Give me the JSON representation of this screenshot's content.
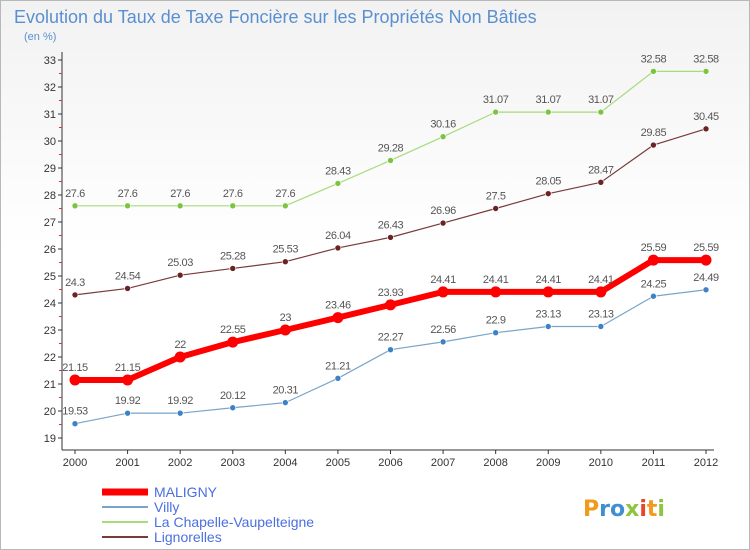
{
  "title": "Evolution du Taux de Taxe Foncière sur les Propriétés Non Bâties",
  "unit_label": "(en %)",
  "logo": "Proxiti",
  "chart_data": {
    "type": "line",
    "x": [
      "2000",
      "2001",
      "2002",
      "2003",
      "2004",
      "2005",
      "2006",
      "2007",
      "2008",
      "2009",
      "2010",
      "2011",
      "2012"
    ],
    "ylim": [
      19,
      33
    ],
    "yticks": [
      "19",
      "20",
      "21",
      "22",
      "23",
      "24",
      "25",
      "26",
      "27",
      "28",
      "29",
      "30",
      "31",
      "32",
      "33"
    ],
    "grid": false,
    "legend_position": "bottom-left",
    "series": [
      {
        "name": "MALIGNY",
        "color": "#ff0000",
        "marker_color": "#ff0000",
        "width": 6,
        "values": [
          21.15,
          21.15,
          22,
          22.55,
          23,
          23.46,
          23.93,
          24.41,
          24.41,
          24.41,
          24.41,
          25.59,
          25.59
        ],
        "labels": [
          "21.15",
          "21.15",
          "22",
          "22.55",
          "23",
          "23.46",
          "23.93",
          "24.41",
          "24.41",
          "24.41",
          "24.41",
          "25.59",
          "25.59"
        ]
      },
      {
        "name": "Villy",
        "color": "#7aa4c8",
        "marker_color": "#3d82c4",
        "width": 1.2,
        "values": [
          19.53,
          19.92,
          19.92,
          20.12,
          20.31,
          21.21,
          22.27,
          22.56,
          22.9,
          23.13,
          23.13,
          24.25,
          24.49
        ],
        "labels": [
          "19.53",
          "19.92",
          "19.92",
          "20.12",
          "20.31",
          "21.21",
          "22.27",
          "22.56",
          "22.9",
          "23.13",
          "23.13",
          "24.25",
          "24.49"
        ]
      },
      {
        "name": "La Chapelle-Vaupelteigne",
        "color": "#a6dc7a",
        "marker_color": "#7cc440",
        "width": 1.2,
        "values": [
          27.6,
          27.6,
          27.6,
          27.6,
          27.6,
          28.43,
          29.28,
          30.16,
          31.07,
          31.07,
          31.07,
          32.58,
          32.58
        ],
        "labels": [
          "27.6",
          "27.6",
          "27.6",
          "27.6",
          "27.6",
          "28.43",
          "29.28",
          "30.16",
          "31.07",
          "31.07",
          "31.07",
          "32.58",
          "32.58"
        ]
      },
      {
        "name": "Lignorelles",
        "color": "#7a3a3a",
        "marker_color": "#6b2222",
        "width": 1.2,
        "values": [
          24.3,
          24.54,
          25.03,
          25.28,
          25.53,
          26.04,
          26.43,
          26.96,
          27.5,
          28.05,
          28.47,
          29.85,
          30.45
        ],
        "labels": [
          "24.3",
          "24.54",
          "25.03",
          "25.28",
          "25.53",
          "26.04",
          "26.43",
          "26.96",
          "27.5",
          "28.05",
          "28.47",
          "29.85",
          "30.45"
        ]
      }
    ]
  }
}
